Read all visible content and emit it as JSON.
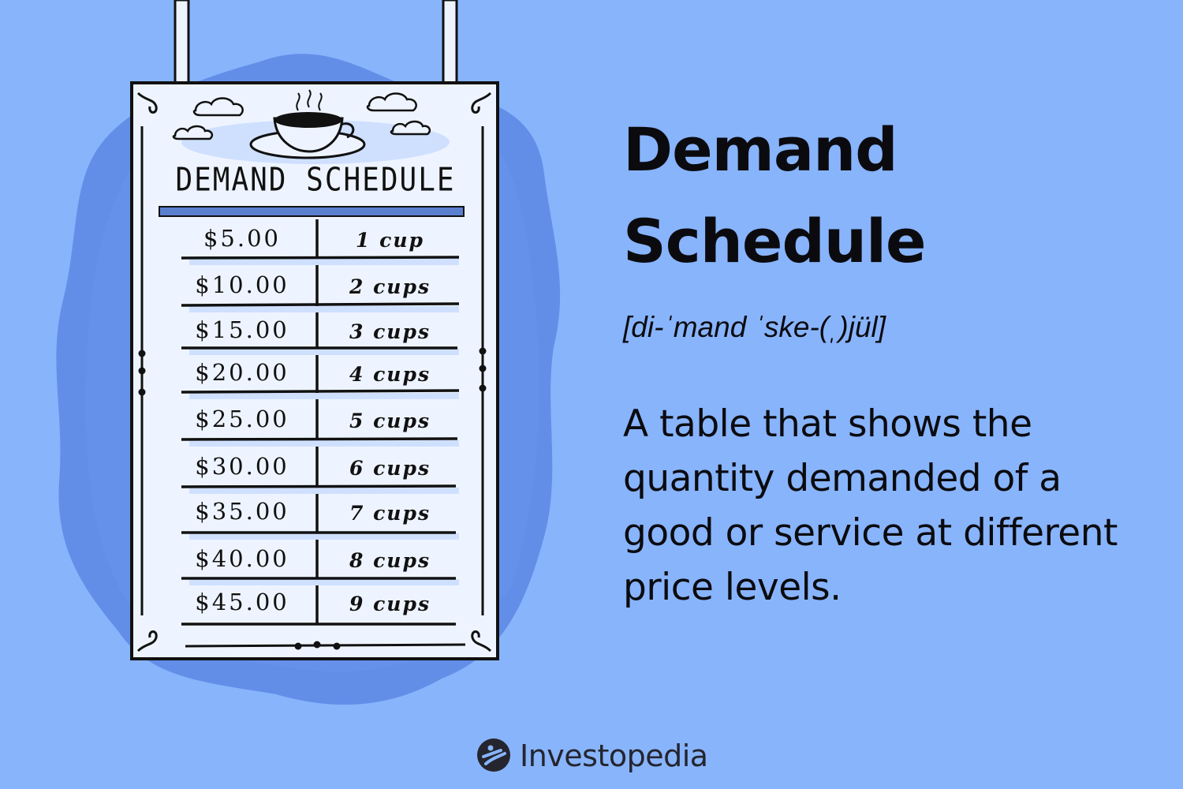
{
  "sign": {
    "title": "DEMAND SCHEDULE",
    "icon": "coffee-cup-icon",
    "rows": [
      {
        "price": "$5.00",
        "quantity": "1 cup"
      },
      {
        "price": "$10.00",
        "quantity": "2 cups"
      },
      {
        "price": "$15.00",
        "quantity": "3 cups"
      },
      {
        "price": "$20.00",
        "quantity": "4 cups"
      },
      {
        "price": "$25.00",
        "quantity": "5 cups"
      },
      {
        "price": "$30.00",
        "quantity": "6 cups"
      },
      {
        "price": "$35.00",
        "quantity": "7 cups"
      },
      {
        "price": "$40.00",
        "quantity": "8 cups"
      },
      {
        "price": "$45.00",
        "quantity": "9 cups"
      }
    ]
  },
  "heading": {
    "line1": "Demand",
    "line2": "Schedule"
  },
  "pronunciation": "[di-ˈmand ˈske-(ˌ)jül]",
  "definition": "A table that shows the quantity demanded of a good or service at different price levels.",
  "brand": {
    "name": "Investopedia",
    "icon": "investopedia-logo-icon"
  },
  "colors": {
    "background": "#88b4fc",
    "blob": "#5f8ae6",
    "accent_bar": "#5b7fcf",
    "sign_paper": "#eef4ff",
    "text": "#0b0b0f"
  }
}
